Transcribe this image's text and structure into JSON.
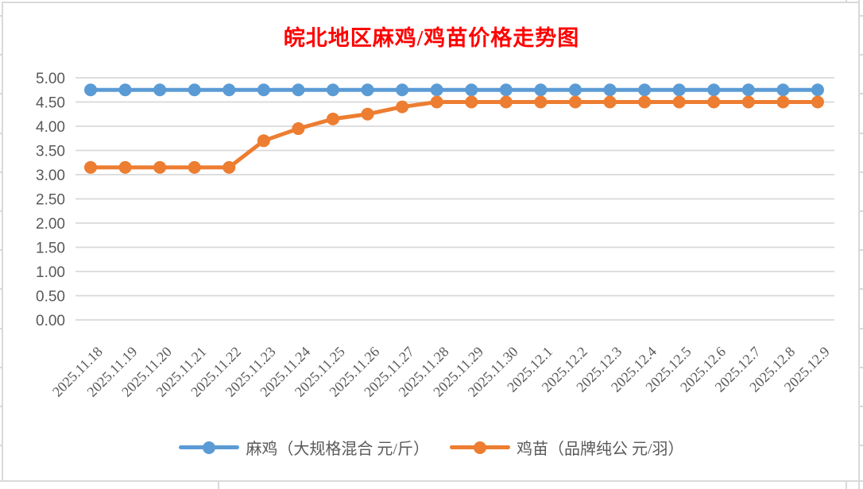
{
  "chart_data": {
    "type": "line",
    "title": "皖北地区麻鸡/鸡苗价格走势图",
    "title_color": "#FF0000",
    "categories": [
      "2025.11.18",
      "2025.11.19",
      "2025.11.20",
      "2025.11.21",
      "2025.11.22",
      "2025.11.23",
      "2025.11.24",
      "2025.11.25",
      "2025.11.26",
      "2025.11.27",
      "2025.11.28",
      "2025.11.29",
      "2025.11.30",
      "2025.12.1",
      "2025.12.2",
      "2025.12.3",
      "2025.12.4",
      "2025.12.5",
      "2025.12.6",
      "2025.12.7",
      "2025.12.8",
      "2025.12.9"
    ],
    "series": [
      {
        "name": "麻鸡（大规格混合 元/斤）",
        "color": "#5B9BD5",
        "values": [
          4.75,
          4.75,
          4.75,
          4.75,
          4.75,
          4.75,
          4.75,
          4.75,
          4.75,
          4.75,
          4.75,
          4.75,
          4.75,
          4.75,
          4.75,
          4.75,
          4.75,
          4.75,
          4.75,
          4.75,
          4.75,
          4.75
        ]
      },
      {
        "name": "鸡苗（品牌纯公 元/羽）",
        "color": "#ED7D31",
        "values": [
          3.15,
          3.15,
          3.15,
          3.15,
          3.15,
          3.7,
          3.95,
          4.15,
          4.25,
          4.4,
          4.5,
          4.5,
          4.5,
          4.5,
          4.5,
          4.5,
          4.5,
          4.5,
          4.5,
          4.5,
          4.5,
          4.5
        ]
      }
    ],
    "ylim": [
      0,
      5
    ],
    "yticks": [
      {
        "v": 0.0,
        "label": "0.00"
      },
      {
        "v": 0.5,
        "label": "0.50"
      },
      {
        "v": 1.0,
        "label": "1.00"
      },
      {
        "v": 1.5,
        "label": "1.50"
      },
      {
        "v": 2.0,
        "label": "2.00"
      },
      {
        "v": 2.5,
        "label": "2.50"
      },
      {
        "v": 3.0,
        "label": "3.00"
      },
      {
        "v": 3.5,
        "label": "3.50"
      },
      {
        "v": 4.0,
        "label": "4.00"
      },
      {
        "v": 4.5,
        "label": "4.50"
      },
      {
        "v": 5.0,
        "label": "5.00"
      }
    ],
    "grid": true,
    "legend_position": "bottom",
    "gridline_color": "#D9D9D9",
    "axis_text_color": "#595959"
  }
}
